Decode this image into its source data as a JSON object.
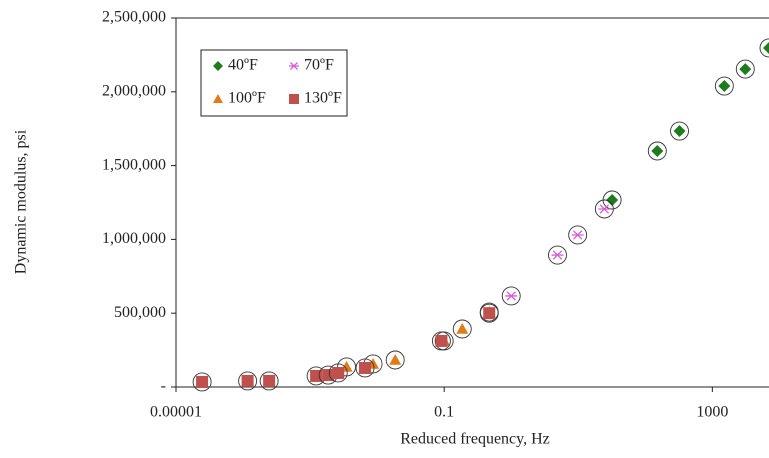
{
  "chart_data": {
    "type": "scatter",
    "x_label": "Reduced frequency, Hz",
    "y_label": "Dynamic modulus, psi",
    "x_log": true,
    "xlim": [
      1e-05,
      7000
    ],
    "xticks": [
      1e-05,
      0.1,
      1000
    ],
    "ylim": [
      0,
      2500000
    ],
    "yticks": [
      {
        "value": 0,
        "label": "-"
      },
      {
        "value": 500000,
        "label": "500,000"
      },
      {
        "value": 1000000,
        "label": "1,000,000"
      },
      {
        "value": 1500000,
        "label": "1,500,000"
      },
      {
        "value": 2000000,
        "label": "2,000,000"
      },
      {
        "value": 2500000,
        "label": "2,500,000"
      }
    ],
    "legend": "upper left",
    "series": [
      {
        "name": "40ºF",
        "color": "#1e7b1e",
        "marker": "diamond",
        "x": [
          32,
          151,
          324,
          1510,
          3100,
          7000
        ],
        "values": [
          1267000,
          1599000,
          1734000,
          2039000,
          2154000,
          2297000
        ]
      },
      {
        "name": "70ºF",
        "color": "#d65fd6",
        "marker": "asterisk",
        "x": [
          1.0,
          4.9,
          9.8,
          24.5
        ],
        "values": [
          617000,
          894000,
          1030000,
          1206000
        ]
      },
      {
        "name": "100ºF",
        "color": "#e07b1a",
        "marker": "triangle",
        "x": [
          0.0035,
          0.0087,
          0.0186,
          0.1,
          0.186,
          0.47
        ],
        "values": [
          136000,
          156000,
          183000,
          312000,
          393000,
          508000
        ]
      },
      {
        "name": "130ºF",
        "color": "#c0504d",
        "marker": "square",
        "x": [
          2.45e-05,
          0.000117,
          0.000245,
          0.00123,
          0.00186,
          0.00263,
          0.0066,
          0.091,
          0.47
        ],
        "values": [
          34000,
          41000,
          41000,
          75000,
          81000,
          95000,
          129000,
          312000,
          500000
        ]
      }
    ]
  }
}
